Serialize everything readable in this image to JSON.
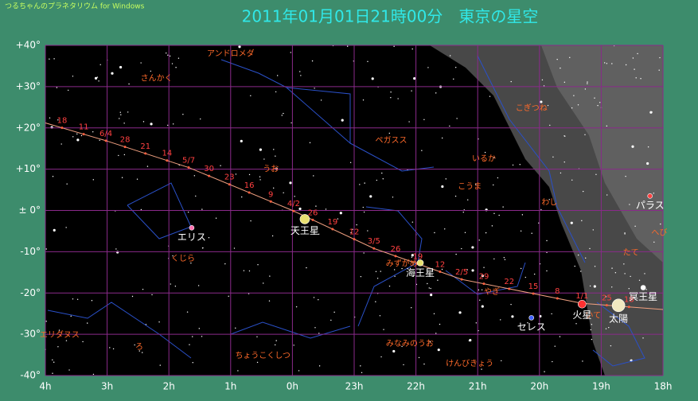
{
  "app_title": "つるちゃんのプラネタリウム for Windows",
  "title": "2011年01月01日21時00分　東京の星空",
  "sky": {
    "ra_ticks": [
      {
        "value": 4,
        "label": "4h"
      },
      {
        "value": 3,
        "label": "3h"
      },
      {
        "value": 2,
        "label": "2h"
      },
      {
        "value": 1,
        "label": "1h"
      },
      {
        "value": 0,
        "label": "0h"
      },
      {
        "value": 23,
        "label": "23h"
      },
      {
        "value": 22,
        "label": "22h"
      },
      {
        "value": 21,
        "label": "21h"
      },
      {
        "value": 20,
        "label": "20h"
      },
      {
        "value": 19,
        "label": "19h"
      },
      {
        "value": 18,
        "label": "18h"
      }
    ],
    "dec_ticks": [
      {
        "value": 40,
        "label": "+40°"
      },
      {
        "value": 30,
        "label": "+30°"
      },
      {
        "value": 20,
        "label": "+20°"
      },
      {
        "value": 10,
        "label": "+10°"
      },
      {
        "value": 0,
        "label": "± 0°"
      },
      {
        "value": -10,
        "label": "-10°"
      },
      {
        "value": -20,
        "label": "-20°"
      },
      {
        "value": -30,
        "label": "-30°"
      },
      {
        "value": -40,
        "label": "-40°"
      }
    ],
    "ecliptic": {
      "points": [
        [
          4,
          21.2
        ],
        [
          3.02,
          16.9
        ],
        [
          1.68,
          10.4
        ],
        [
          0,
          0
        ],
        [
          22.68,
          -9.2
        ],
        [
          21.26,
          -16.7
        ],
        [
          19.31,
          -22.5
        ],
        [
          18,
          -24
        ]
      ],
      "dates": [
        {
          "label": "18",
          "ra": 3.73
        },
        {
          "label": "11",
          "ra": 3.38
        },
        {
          "label": "6/4",
          "ra": 3.02
        },
        {
          "label": "28",
          "ra": 2.71
        },
        {
          "label": "21",
          "ra": 2.38
        },
        {
          "label": "14",
          "ra": 2.03
        },
        {
          "label": "5/7",
          "ra": 1.68
        },
        {
          "label": "30",
          "ra": 1.35
        },
        {
          "label": "23",
          "ra": 1.02
        },
        {
          "label": "16",
          "ra": 0.7
        },
        {
          "label": "9",
          "ra": 0.35
        },
        {
          "label": "4/2",
          "ra": 23.98
        },
        {
          "label": "26",
          "ra": 23.67
        },
        {
          "label": "19",
          "ra": 23.35
        },
        {
          "label": "12",
          "ra": 23.0
        },
        {
          "label": "3/5",
          "ra": 22.68
        },
        {
          "label": "26",
          "ra": 22.33
        },
        {
          "label": "19",
          "ra": 21.97
        },
        {
          "label": "12",
          "ra": 21.61
        },
        {
          "label": "2/5",
          "ra": 21.26
        },
        {
          "label": "29",
          "ra": 20.9
        },
        {
          "label": "22",
          "ra": 20.49
        },
        {
          "label": "15",
          "ra": 20.1
        },
        {
          "label": "8",
          "ra": 19.71
        },
        {
          "label": "1/1",
          "ra": 19.31
        },
        {
          "label": "25",
          "ra": 18.91
        },
        {
          "label": "18",
          "ra": 18.55
        }
      ]
    },
    "bodies": [
      {
        "name": "天王星",
        "ra": 23.8,
        "dec": -2.1,
        "color": "#e8e070",
        "size": 6
      },
      {
        "name": "海王星",
        "ra": 21.93,
        "dec": -12.7,
        "color": "#e8e070",
        "size": 4
      },
      {
        "name": "火星",
        "ra": 19.31,
        "dec": -22.7,
        "color": "#ff3030",
        "size": 5
      },
      {
        "name": "太陽",
        "ra": 18.72,
        "dec": -23,
        "color": "#f0e8c0",
        "size": 8
      },
      {
        "name": "冥王星",
        "ra": 18.32,
        "dec": -18.7,
        "color": "#ffffff",
        "size": 3
      },
      {
        "name": "セレス",
        "ra": 20.13,
        "dec": -26,
        "color": "#4060ff",
        "size": 3
      },
      {
        "name": "エリス",
        "ra": 1.63,
        "dec": -4.2,
        "color": "#ff70b0",
        "size": 3
      },
      {
        "name": "パラス",
        "ra": 18.21,
        "dec": 3.5,
        "color": "#ff4040",
        "size": 3
      }
    ],
    "constellations": [
      {
        "name": "アンドロメダ",
        "ra": 1.0,
        "dec": 38
      },
      {
        "name": "さんかく",
        "ra": 2.2,
        "dec": 32
      },
      {
        "name": "ペガスス",
        "ra": 22.4,
        "dec": 17
      },
      {
        "name": "うお",
        "ra": 0.35,
        "dec": 10
      },
      {
        "name": "いるか",
        "ra": 20.9,
        "dec": 12.5
      },
      {
        "name": "こうま",
        "ra": 21.13,
        "dec": 5.8
      },
      {
        "name": "こぎつね",
        "ra": 20.13,
        "dec": 24.8
      },
      {
        "name": "わし",
        "ra": 19.84,
        "dec": 1.9
      },
      {
        "name": "くじら",
        "ra": 1.77,
        "dec": -11.7
      },
      {
        "name": "エリダヌス",
        "ra": 3.77,
        "dec": -30.2
      },
      {
        "name": "みずがめ",
        "ra": 22.23,
        "dec": -12.9
      },
      {
        "name": "やぎ",
        "ra": 20.77,
        "dec": -19.8
      },
      {
        "name": "いて",
        "ra": 19.13,
        "dec": -25.4
      },
      {
        "name": "たて",
        "ra": 18.52,
        "dec": -10.2
      },
      {
        "name": "へび",
        "ra": 18.06,
        "dec": -5.4
      },
      {
        "name": "みなみのうお",
        "ra": 22.1,
        "dec": -32.3
      },
      {
        "name": "ちょうこくしつ",
        "ra": 0.48,
        "dec": -35.2
      },
      {
        "name": "けんびきょう",
        "ra": 21.13,
        "dec": -37.1
      },
      {
        "name": "ろ",
        "ra": 2.48,
        "dec": -33.1
      }
    ]
  }
}
